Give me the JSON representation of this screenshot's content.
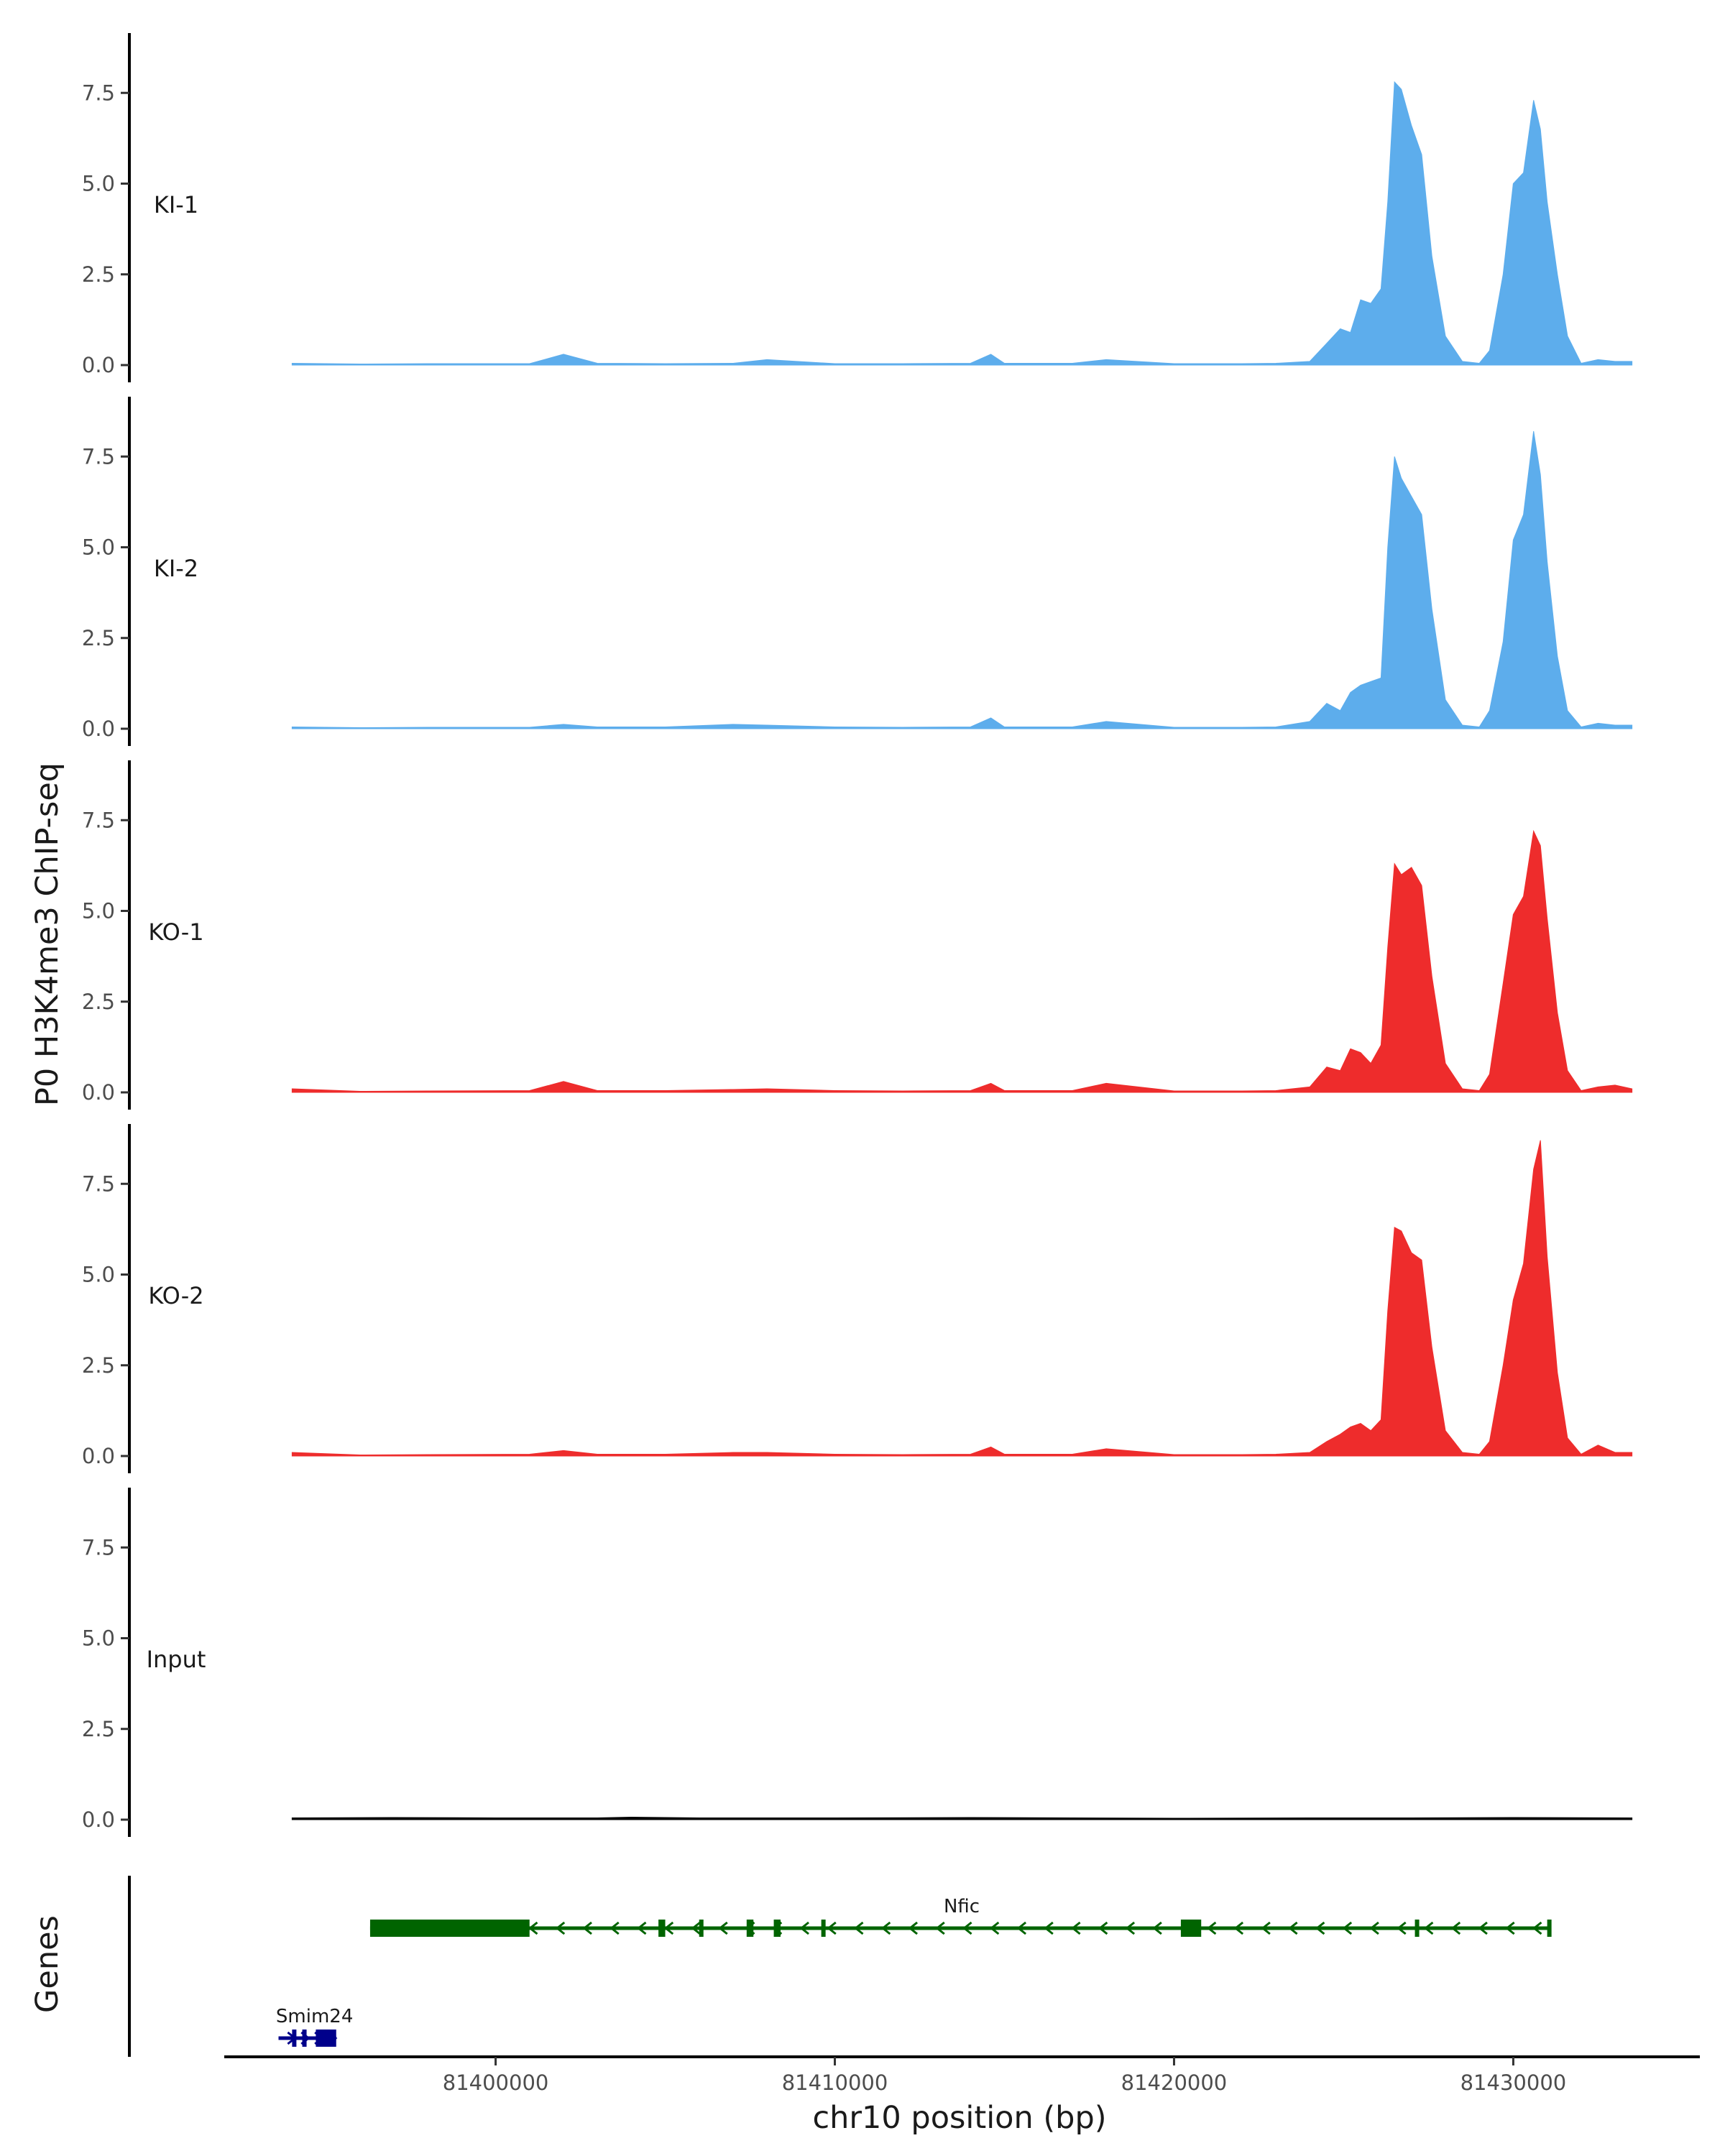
{
  "chart_data": {
    "type": "area",
    "ylabel": "P0 H3K4me3 ChIP-seq",
    "xlabel": "chr10 position (bp)",
    "xlim": [
      81392000,
      81435500
    ],
    "ylim": [
      0,
      9.1
    ],
    "y_ticks": [
      0.0,
      2.5,
      5.0,
      7.5
    ],
    "y_tick_labels": [
      "0.0",
      "2.5",
      "5.0",
      "7.5"
    ],
    "x_ticks": [
      81400000,
      81410000,
      81420000,
      81430000
    ],
    "x_tick_labels": [
      "81400000",
      "81410000",
      "81420000",
      "81430000"
    ],
    "grid": false,
    "colors": {
      "KI": "#5DADEC",
      "KO": "#EE2C2C",
      "Input": "#000000",
      "gene_nfic": "#006400",
      "gene_smim24": "#00008B"
    },
    "tracks": [
      {
        "label": "KI-1",
        "color": "#5DADEC",
        "x": [
          81394000,
          81396000,
          81398000,
          81401000,
          81402000,
          81403000,
          81405000,
          81407000,
          81408000,
          81410000,
          81412000,
          81414000,
          81414600,
          81415000,
          81417000,
          81418000,
          81420000,
          81422000,
          81423000,
          81424000,
          81424500,
          81424900,
          81425200,
          81425500,
          81425800,
          81426100,
          81426300,
          81426500,
          81426700,
          81427000,
          81427300,
          81427600,
          81428000,
          81428500,
          81429000,
          81429300,
          81429700,
          81430000,
          81430300,
          81430600,
          81430800,
          81431000,
          81431300,
          81431600,
          81432000,
          81432500,
          81433000,
          81433500
        ],
        "y": [
          0.05,
          0.03,
          0.04,
          0.04,
          0.3,
          0.05,
          0.04,
          0.05,
          0.15,
          0.04,
          0.04,
          0.05,
          0.3,
          0.05,
          0.05,
          0.15,
          0.04,
          0.04,
          0.05,
          0.1,
          0.6,
          1.0,
          0.9,
          1.8,
          1.7,
          2.1,
          4.5,
          7.8,
          7.6,
          6.6,
          5.8,
          3.0,
          0.8,
          0.1,
          0.05,
          0.4,
          2.5,
          5.0,
          5.3,
          7.3,
          6.5,
          4.5,
          2.5,
          0.8,
          0.05,
          0.15,
          0.1,
          0.1
        ]
      },
      {
        "label": "KI-2",
        "color": "#5DADEC",
        "x": [
          81394000,
          81396000,
          81398000,
          81401000,
          81402000,
          81403000,
          81405000,
          81407000,
          81408000,
          81410000,
          81412000,
          81414000,
          81414600,
          81415000,
          81417000,
          81418000,
          81420000,
          81422000,
          81423000,
          81424000,
          81424500,
          81424900,
          81425200,
          81425500,
          81425800,
          81426100,
          81426300,
          81426500,
          81426700,
          81427000,
          81427300,
          81427600,
          81428000,
          81428500,
          81429000,
          81429300,
          81429700,
          81430000,
          81430300,
          81430600,
          81430800,
          81431000,
          81431300,
          81431600,
          81432000,
          81432500,
          81433000,
          81433500
        ],
        "y": [
          0.05,
          0.03,
          0.04,
          0.04,
          0.12,
          0.05,
          0.05,
          0.12,
          0.1,
          0.05,
          0.04,
          0.05,
          0.3,
          0.05,
          0.05,
          0.2,
          0.04,
          0.04,
          0.05,
          0.2,
          0.7,
          0.5,
          1.0,
          1.2,
          1.3,
          1.4,
          5.0,
          7.5,
          6.9,
          6.4,
          5.9,
          3.3,
          0.8,
          0.1,
          0.05,
          0.5,
          2.4,
          5.2,
          5.9,
          8.2,
          7.0,
          4.6,
          2.0,
          0.5,
          0.05,
          0.15,
          0.1,
          0.1
        ]
      },
      {
        "label": "KO-1",
        "color": "#EE2C2C",
        "x": [
          81394000,
          81396000,
          81398000,
          81401000,
          81402000,
          81403000,
          81405000,
          81407000,
          81408000,
          81410000,
          81412000,
          81414000,
          81414600,
          81415000,
          81417000,
          81418000,
          81420000,
          81422000,
          81423000,
          81424000,
          81424500,
          81424900,
          81425200,
          81425500,
          81425800,
          81426100,
          81426300,
          81426500,
          81426700,
          81427000,
          81427300,
          81427600,
          81428000,
          81428500,
          81429000,
          81429300,
          81429700,
          81430000,
          81430300,
          81430600,
          81430800,
          81431000,
          81431300,
          81431600,
          81432000,
          81432500,
          81433000,
          81433500
        ],
        "y": [
          0.1,
          0.03,
          0.04,
          0.05,
          0.3,
          0.05,
          0.05,
          0.08,
          0.1,
          0.05,
          0.04,
          0.05,
          0.25,
          0.05,
          0.05,
          0.25,
          0.04,
          0.04,
          0.05,
          0.15,
          0.7,
          0.6,
          1.2,
          1.1,
          0.8,
          1.3,
          4.0,
          6.3,
          6.0,
          6.2,
          5.7,
          3.2,
          0.8,
          0.1,
          0.05,
          0.5,
          3.0,
          4.9,
          5.4,
          7.2,
          6.8,
          4.8,
          2.2,
          0.6,
          0.05,
          0.15,
          0.2,
          0.1
        ]
      },
      {
        "label": "KO-2",
        "color": "#EE2C2C",
        "x": [
          81394000,
          81396000,
          81398000,
          81401000,
          81402000,
          81403000,
          81405000,
          81407000,
          81408000,
          81410000,
          81412000,
          81414000,
          81414600,
          81415000,
          81417000,
          81418000,
          81420000,
          81422000,
          81423000,
          81424000,
          81424500,
          81424900,
          81425200,
          81425500,
          81425800,
          81426100,
          81426300,
          81426500,
          81426700,
          81427000,
          81427300,
          81427600,
          81428000,
          81428500,
          81429000,
          81429300,
          81429700,
          81430000,
          81430300,
          81430600,
          81430800,
          81431000,
          81431300,
          81431600,
          81432000,
          81432500,
          81433000,
          81433500
        ],
        "y": [
          0.1,
          0.03,
          0.04,
          0.05,
          0.15,
          0.05,
          0.05,
          0.1,
          0.1,
          0.05,
          0.04,
          0.05,
          0.25,
          0.05,
          0.05,
          0.2,
          0.04,
          0.04,
          0.05,
          0.1,
          0.4,
          0.6,
          0.8,
          0.9,
          0.7,
          1.0,
          4.0,
          6.3,
          6.2,
          5.6,
          5.4,
          3.0,
          0.7,
          0.1,
          0.05,
          0.4,
          2.5,
          4.3,
          5.3,
          7.9,
          8.7,
          5.5,
          2.3,
          0.5,
          0.05,
          0.3,
          0.1,
          0.1
        ]
      },
      {
        "label": "Input",
        "color": "#000000",
        "x": [
          81394000,
          81397000,
          81400000,
          81403000,
          81404000,
          81406000,
          81410000,
          81414000,
          81417000,
          81420000,
          81424000,
          81427000,
          81430000,
          81433500
        ],
        "y": [
          0.05,
          0.06,
          0.05,
          0.05,
          0.07,
          0.05,
          0.05,
          0.06,
          0.05,
          0.04,
          0.05,
          0.05,
          0.06,
          0.05
        ]
      }
    ],
    "genes_track": {
      "label": "Genes",
      "genes": [
        {
          "name": "Nfic",
          "start": 81396300,
          "end": 81431100,
          "strand": "-",
          "color": "#006400",
          "exons": [
            [
              81396300,
              81401000
            ],
            [
              81404800,
              81405000
            ],
            [
              81406000,
              81406100
            ],
            [
              81407400,
              81407600
            ],
            [
              81408200,
              81408400
            ],
            [
              81409600,
              81409700
            ],
            [
              81420200,
              81420800
            ],
            [
              81427100,
              81427200
            ],
            [
              81431000,
              81431100
            ]
          ],
          "arrow_step": 800
        },
        {
          "name": "Smim24",
          "start": 81393600,
          "end": 81395300,
          "strand": "+",
          "color": "#00008B",
          "exons": [
            [
              81394000,
              81394100
            ],
            [
              81394300,
              81394400
            ],
            [
              81394700,
              81395300
            ]
          ],
          "arrow_step": 400
        }
      ]
    }
  }
}
